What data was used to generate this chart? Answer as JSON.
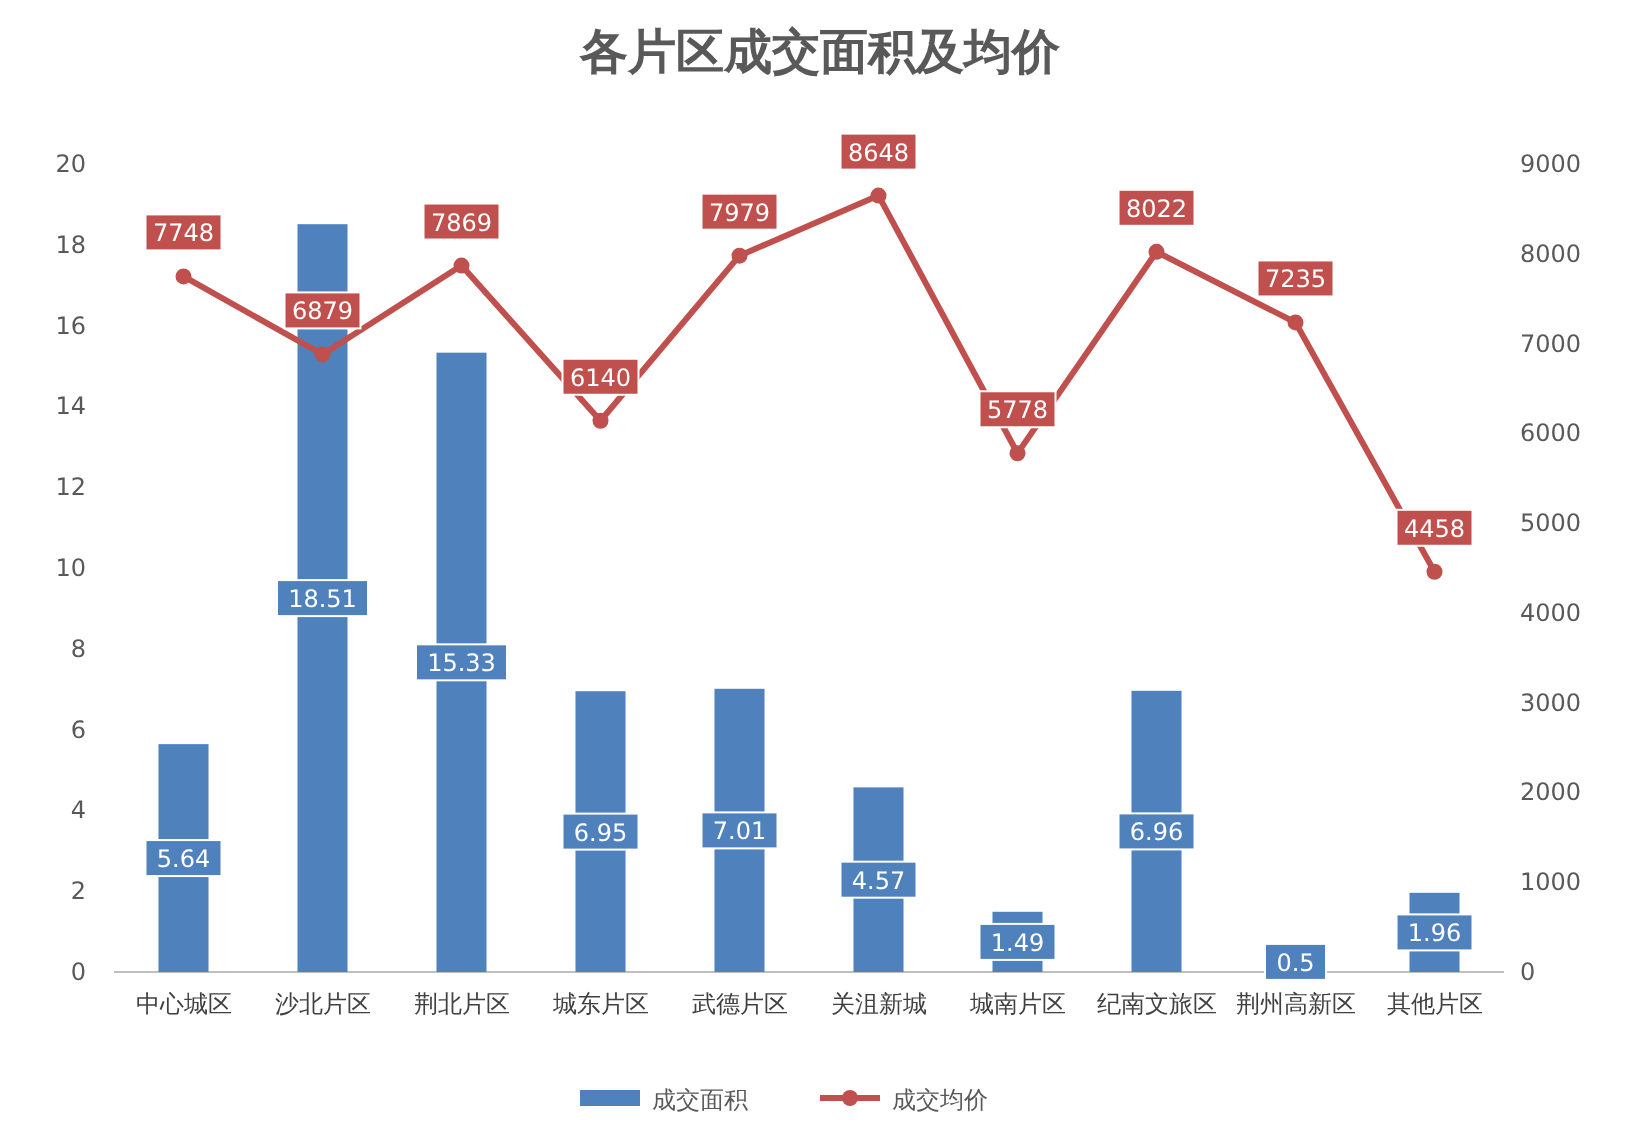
{
  "chart_data": {
    "type": "bar",
    "title": "各片区成交面积及均价",
    "categories": [
      "中心城区",
      "沙北片区",
      "荆北片区",
      "城东片区",
      "武德片区",
      "关沮新城",
      "城南片区",
      "纪南文旅区",
      "荆州高新区",
      "其他片区"
    ],
    "series": [
      {
        "name": "成交面积",
        "color": "#4f81bd",
        "values": [
          5.64,
          18.51,
          15.33,
          6.95,
          7.01,
          4.57,
          1.49,
          6.96,
          0.5,
          1.96
        ]
      },
      {
        "name": "成交均价",
        "type": "line",
        "axis": "y2",
        "color": "#c0504d",
        "marker": "circle",
        "values": [
          7748,
          6879,
          7869,
          6140,
          7979,
          8648,
          5778,
          8022,
          7235,
          4458
        ]
      }
    ],
    "ylim": [
      0,
      20
    ],
    "yticks": [
      0,
      2,
      4,
      6,
      8,
      10,
      12,
      14,
      16,
      18,
      20
    ],
    "y2lim": [
      0,
      9000
    ],
    "y2ticks": [
      0,
      1000,
      2000,
      3000,
      4000,
      5000,
      6000,
      7000,
      8000,
      9000
    ],
    "data_labels": true,
    "legend": "bottom",
    "grid": false
  }
}
